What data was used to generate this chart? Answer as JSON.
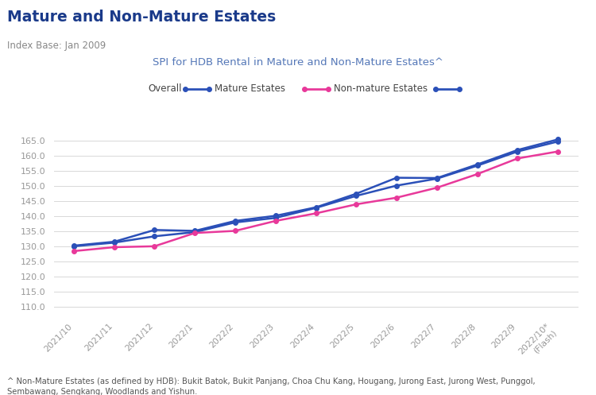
{
  "title": "Mature and Non-Mature Estates",
  "index_base": "Index Base: Jan 2009",
  "subtitle": "SPI for HDB Rental in Mature and Non-Mature Estates^",
  "footnote": "^ Non-Mature Estates (as defined by HDB): Bukit Batok, Bukit Panjang, Choa Chu Kang, Hougang, Jurong East, Jurong West, Punggol,\nSembawang, Sengkang, Woodlands and Yishun.",
  "x_labels": [
    "2021/10",
    "2021/11",
    "2021/12",
    "2022/1",
    "2022/2",
    "2022/3",
    "2022/4",
    "2022/5",
    "2022/6",
    "2022/7",
    "2022/8",
    "2022/9",
    "2022/10*\n(Flash)"
  ],
  "mature_upper": [
    130.3,
    131.6,
    135.5,
    135.2,
    138.5,
    140.2,
    143.0,
    147.5,
    152.8,
    152.7,
    157.2,
    162.0,
    165.5
  ],
  "mature_lower": [
    130.1,
    131.3,
    133.4,
    134.8,
    138.0,
    139.5,
    142.8,
    146.8,
    150.2,
    152.5,
    156.8,
    161.5,
    164.8
  ],
  "non_mature": [
    128.5,
    129.8,
    130.1,
    134.5,
    135.2,
    138.5,
    141.0,
    144.0,
    146.2,
    149.5,
    154.0,
    159.2,
    161.5
  ],
  "blue_color": "#2b50b8",
  "pink_color": "#e8399a",
  "ylim_min": 107.0,
  "ylim_max": 168.5,
  "yticks": [
    110.0,
    115.0,
    120.0,
    125.0,
    130.0,
    135.0,
    140.0,
    145.0,
    150.0,
    155.0,
    160.0,
    165.0
  ],
  "bg_color": "#ffffff",
  "grid_color": "#d8d8d8",
  "title_color": "#1a3a8a",
  "subtitle_color": "#5578b8",
  "axis_label_color": "#999999",
  "text_color": "#444444",
  "footnote_color": "#555555"
}
